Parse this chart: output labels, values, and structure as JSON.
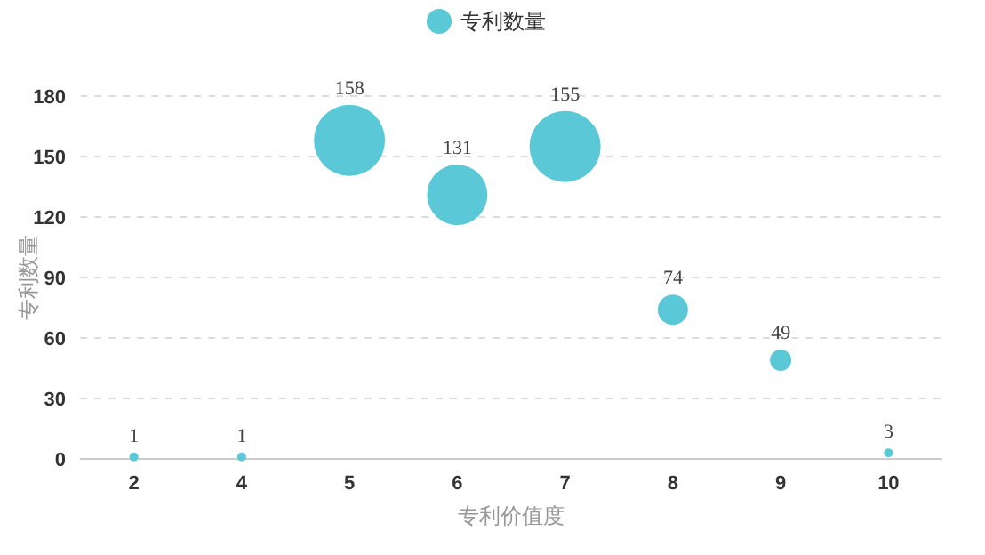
{
  "chart_data": {
    "type": "bubble",
    "xlabel": "专利价值度",
    "ylabel": "专利数量",
    "categories": [
      "2",
      "4",
      "5",
      "6",
      "7",
      "8",
      "9",
      "10"
    ],
    "series": [
      {
        "name": "专利数量",
        "color": "#5bc8d8",
        "values": [
          1,
          1,
          158,
          131,
          155,
          74,
          49,
          3
        ],
        "sizes": [
          0.016,
          0.016,
          1,
          0.72,
          1,
          0.18,
          0.09,
          0.016
        ]
      }
    ],
    "ylim": [
      0,
      180
    ],
    "yticks": [
      0,
      30,
      60,
      90,
      120,
      150,
      180
    ],
    "grid": "y",
    "legend": "top",
    "marker": "circle",
    "data_labels": true
  }
}
